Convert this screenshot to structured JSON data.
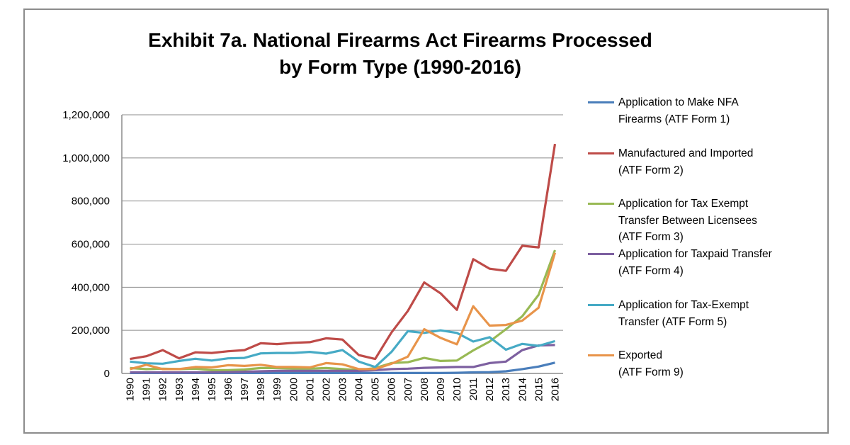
{
  "chart_data": {
    "type": "line",
    "title": "Exhibit 7a. National Firearms Act Firearms Processed\nby Form Type  (1990-2016)",
    "xlabel": "",
    "ylabel": "",
    "ylim": [
      0,
      1200000
    ],
    "yticks": [
      "0",
      "200,000",
      "400,000",
      "600,000",
      "800,000",
      "1,000,000",
      "1,200,000"
    ],
    "ytick_values": [
      0,
      200000,
      400000,
      600000,
      800000,
      1000000,
      1200000
    ],
    "grid": true,
    "legend_position": "right",
    "x": [
      "1990",
      "1991",
      "1992",
      "1993",
      "1994",
      "1995",
      "1996",
      "1997",
      "1998",
      "1999",
      "2000",
      "2001",
      "2002",
      "2003",
      "2004",
      "2005",
      "2006",
      "2007",
      "2008",
      "2009",
      "2010",
      "2011",
      "2012",
      "2013",
      "2014",
      "2015",
      "2016"
    ],
    "series": [
      {
        "name": "Application to Make NFA\nFirearms (ATF Form 1)",
        "color": "#4A7EBB",
        "values": [
          2000,
          2000,
          2000,
          2000,
          2000,
          2000,
          2000,
          2000,
          2000,
          2000,
          2000,
          2000,
          2000,
          2000,
          2000,
          2000,
          2000,
          2000,
          2000,
          2000,
          3000,
          5000,
          6000,
          10000,
          20000,
          32000,
          50000
        ]
      },
      {
        "name": "Manufactured and Imported\n(ATF Form 2)",
        "color": "#BE4B48",
        "values": [
          67000,
          80000,
          108000,
          70000,
          98000,
          95000,
          103000,
          108000,
          140000,
          136000,
          142000,
          145000,
          163000,
          157000,
          85000,
          67000,
          190000,
          290000,
          422000,
          372000,
          295000,
          530000,
          486000,
          476000,
          592000,
          585000,
          1065000
        ]
      },
      {
        "name": "Application for Tax Exempt\nTransfer Between Licensees\n(ATF Form 3)",
        "color": "#98B954",
        "values": [
          25000,
          20000,
          22000,
          20000,
          22000,
          15000,
          15000,
          18000,
          25000,
          25000,
          22000,
          22000,
          25000,
          20000,
          15000,
          25000,
          48000,
          52000,
          72000,
          58000,
          60000,
          107000,
          148000,
          205000,
          265000,
          365000,
          572000
        ]
      },
      {
        "name": "Application for Taxpaid Transfer\n(ATF Form 4)",
        "color": "#7D60A0",
        "values": [
          5000,
          5000,
          5000,
          5000,
          5000,
          5000,
          6000,
          8000,
          10000,
          12000,
          12000,
          12000,
          12000,
          12000,
          12000,
          15000,
          20000,
          22000,
          26000,
          28000,
          30000,
          30000,
          48000,
          55000,
          108000,
          130000,
          132000
        ]
      },
      {
        "name": "Application for Tax-Exempt\nTransfer (ATF Form 5)",
        "color": "#46AAC5",
        "values": [
          55000,
          47000,
          45000,
          58000,
          68000,
          60000,
          70000,
          72000,
          93000,
          95000,
          95000,
          100000,
          92000,
          108000,
          55000,
          30000,
          100000,
          196000,
          188000,
          200000,
          188000,
          148000,
          168000,
          110000,
          137000,
          128000,
          150000
        ]
      },
      {
        "name": "Exported\n(ATF Form 9)",
        "color": "#E8944A",
        "values": [
          20000,
          40000,
          20000,
          20000,
          30000,
          28000,
          38000,
          35000,
          40000,
          30000,
          30000,
          28000,
          48000,
          42000,
          20000,
          20000,
          45000,
          78000,
          205000,
          165000,
          135000,
          312000,
          222000,
          225000,
          245000,
          305000,
          560000
        ]
      }
    ]
  }
}
